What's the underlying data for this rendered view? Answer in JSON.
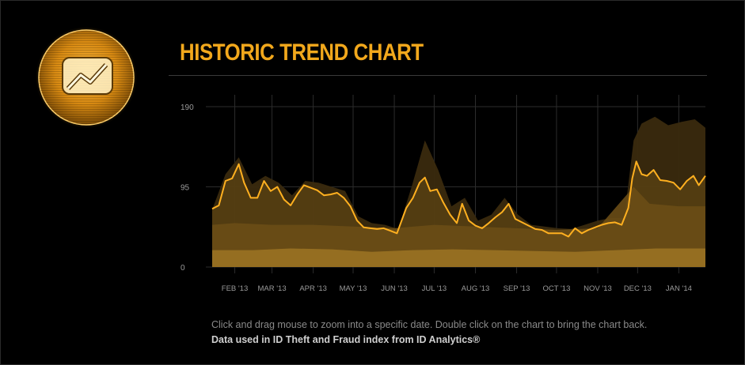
{
  "header": {
    "title": "HISTORIC TREND CHART",
    "icon": "trend-chart-icon"
  },
  "colors": {
    "accent": "#f2a81c",
    "line": "#ffb020",
    "band_dark": "#3a2a0e",
    "band_mid": "#6a4d16",
    "band_light": "#9a7222",
    "background": "#000000"
  },
  "footer": {
    "note": "Click and drag mouse to zoom into a specific date. Double click on the chart to bring the chart back.",
    "credit": "Data used in ID Theft and Fraud index from ID Analytics®"
  },
  "chart_data": {
    "type": "area",
    "x_start": "2013-01-15",
    "x_end": "2014-01-21",
    "ylim": [
      0,
      190
    ],
    "y_ticks": [
      {
        "v": 0,
        "label": "0"
      },
      {
        "v": 95,
        "label": "95"
      },
      {
        "v": 190,
        "label": "190"
      }
    ],
    "x_ticks": [
      {
        "date": "2013-02-01",
        "label": "FEB '13"
      },
      {
        "date": "2013-03-01",
        "label": "MAR '13"
      },
      {
        "date": "2013-04-01",
        "label": "APR '13"
      },
      {
        "date": "2013-05-01",
        "label": "MAY '13"
      },
      {
        "date": "2013-06-01",
        "label": "JUN '13"
      },
      {
        "date": "2013-07-01",
        "label": "JUL '13"
      },
      {
        "date": "2013-08-01",
        "label": "AUG '13"
      },
      {
        "date": "2013-09-01",
        "label": "SEP '13"
      },
      {
        "date": "2013-10-01",
        "label": "OCT '13"
      },
      {
        "date": "2013-11-01",
        "label": "NOV '13"
      },
      {
        "date": "2013-12-01",
        "label": "DEC '13"
      },
      {
        "date": "2014-01-01",
        "label": "JAN '14"
      }
    ],
    "grid": true,
    "series": [
      {
        "role": "index line",
        "points": [
          [
            "2013-01-15",
            69
          ],
          [
            "2013-01-20",
            73
          ],
          [
            "2013-01-25",
            102
          ],
          [
            "2013-01-30",
            105
          ],
          [
            "2013-02-04",
            122
          ],
          [
            "2013-02-08",
            100
          ],
          [
            "2013-02-13",
            82
          ],
          [
            "2013-02-18",
            82
          ],
          [
            "2013-02-23",
            102
          ],
          [
            "2013-02-28",
            90
          ],
          [
            "2013-03-05",
            95
          ],
          [
            "2013-03-10",
            80
          ],
          [
            "2013-03-15",
            73
          ],
          [
            "2013-03-20",
            86
          ],
          [
            "2013-03-25",
            97
          ],
          [
            "2013-03-30",
            94
          ],
          [
            "2013-04-04",
            91
          ],
          [
            "2013-04-09",
            85
          ],
          [
            "2013-04-14",
            86
          ],
          [
            "2013-04-19",
            88
          ],
          [
            "2013-04-24",
            82
          ],
          [
            "2013-04-29",
            72
          ],
          [
            "2013-05-04",
            55
          ],
          [
            "2013-05-09",
            47
          ],
          [
            "2013-05-14",
            46
          ],
          [
            "2013-05-19",
            45
          ],
          [
            "2013-05-24",
            46
          ],
          [
            "2013-05-29",
            43
          ],
          [
            "2013-06-03",
            40
          ],
          [
            "2013-06-06",
            53
          ],
          [
            "2013-06-10",
            70
          ],
          [
            "2013-06-15",
            82
          ],
          [
            "2013-06-20",
            100
          ],
          [
            "2013-06-24",
            106
          ],
          [
            "2013-06-28",
            90
          ],
          [
            "2013-07-03",
            92
          ],
          [
            "2013-07-08",
            76
          ],
          [
            "2013-07-13",
            62
          ],
          [
            "2013-07-18",
            52
          ],
          [
            "2013-07-22",
            75
          ],
          [
            "2013-07-27",
            55
          ],
          [
            "2013-08-01",
            49
          ],
          [
            "2013-08-06",
            46
          ],
          [
            "2013-08-11",
            52
          ],
          [
            "2013-08-16",
            59
          ],
          [
            "2013-08-21",
            65
          ],
          [
            "2013-08-26",
            75
          ],
          [
            "2013-08-31",
            57
          ],
          [
            "2013-09-05",
            53
          ],
          [
            "2013-09-10",
            49
          ],
          [
            "2013-09-15",
            45
          ],
          [
            "2013-09-20",
            44
          ],
          [
            "2013-09-25",
            40
          ],
          [
            "2013-09-30",
            40
          ],
          [
            "2013-10-05",
            40
          ],
          [
            "2013-10-10",
            36
          ],
          [
            "2013-10-15",
            46
          ],
          [
            "2013-10-20",
            40
          ],
          [
            "2013-10-25",
            44
          ],
          [
            "2013-10-30",
            47
          ],
          [
            "2013-11-04",
            50
          ],
          [
            "2013-11-09",
            52
          ],
          [
            "2013-11-14",
            53
          ],
          [
            "2013-11-19",
            50
          ],
          [
            "2013-11-24",
            70
          ],
          [
            "2013-11-27",
            105
          ],
          [
            "2013-11-30",
            125
          ],
          [
            "2013-12-04",
            110
          ],
          [
            "2013-12-08",
            108
          ],
          [
            "2013-12-13",
            115
          ],
          [
            "2013-12-18",
            103
          ],
          [
            "2013-12-23",
            102
          ],
          [
            "2013-12-28",
            100
          ],
          [
            "2014-01-02",
            92
          ],
          [
            "2014-01-07",
            102
          ],
          [
            "2014-01-12",
            108
          ],
          [
            "2014-01-16",
            97
          ],
          [
            "2014-01-21",
            108
          ]
        ]
      },
      {
        "role": "upper band",
        "points": [
          [
            "2013-01-15",
            68
          ],
          [
            "2013-01-25",
            110
          ],
          [
            "2013-02-04",
            130
          ],
          [
            "2013-02-14",
            98
          ],
          [
            "2013-02-24",
            108
          ],
          [
            "2013-03-06",
            100
          ],
          [
            "2013-03-16",
            85
          ],
          [
            "2013-03-26",
            102
          ],
          [
            "2013-04-05",
            100
          ],
          [
            "2013-04-15",
            95
          ],
          [
            "2013-04-25",
            90
          ],
          [
            "2013-05-05",
            60
          ],
          [
            "2013-05-15",
            52
          ],
          [
            "2013-05-25",
            50
          ],
          [
            "2013-06-04",
            45
          ],
          [
            "2013-06-14",
            95
          ],
          [
            "2013-06-24",
            150
          ],
          [
            "2013-07-04",
            115
          ],
          [
            "2013-07-14",
            72
          ],
          [
            "2013-07-24",
            82
          ],
          [
            "2013-08-03",
            55
          ],
          [
            "2013-08-13",
            62
          ],
          [
            "2013-08-23",
            82
          ],
          [
            "2013-09-02",
            62
          ],
          [
            "2013-09-12",
            50
          ],
          [
            "2013-09-22",
            48
          ],
          [
            "2013-10-02",
            46
          ],
          [
            "2013-10-12",
            45
          ],
          [
            "2013-10-22",
            50
          ],
          [
            "2013-11-01",
            55
          ],
          [
            "2013-11-11",
            58
          ],
          [
            "2013-11-21",
            58
          ],
          [
            "2013-11-28",
            150
          ],
          [
            "2013-12-04",
            170
          ],
          [
            "2013-12-14",
            178
          ],
          [
            "2013-12-24",
            168
          ],
          [
            "2014-01-03",
            172
          ],
          [
            "2014-01-13",
            175
          ],
          [
            "2014-01-21",
            165
          ]
        ]
      },
      {
        "role": "middle band",
        "points": [
          [
            "2013-01-15",
            50
          ],
          [
            "2013-02-01",
            52
          ],
          [
            "2013-03-01",
            50
          ],
          [
            "2013-04-01",
            50
          ],
          [
            "2013-05-01",
            48
          ],
          [
            "2013-06-01",
            46
          ],
          [
            "2013-07-01",
            50
          ],
          [
            "2013-08-01",
            48
          ],
          [
            "2013-09-01",
            46
          ],
          [
            "2013-10-01",
            44
          ],
          [
            "2013-11-01",
            46
          ],
          [
            "2013-11-28",
            95
          ],
          [
            "2013-12-10",
            75
          ],
          [
            "2014-01-01",
            72
          ],
          [
            "2014-01-21",
            72
          ]
        ]
      },
      {
        "role": "lower band",
        "points": [
          [
            "2013-01-15",
            20
          ],
          [
            "2013-02-15",
            20
          ],
          [
            "2013-03-15",
            22
          ],
          [
            "2013-04-15",
            21
          ],
          [
            "2013-05-15",
            18
          ],
          [
            "2013-06-15",
            20
          ],
          [
            "2013-07-15",
            21
          ],
          [
            "2013-08-15",
            20
          ],
          [
            "2013-09-15",
            19
          ],
          [
            "2013-10-15",
            18
          ],
          [
            "2013-11-15",
            20
          ],
          [
            "2013-12-15",
            22
          ],
          [
            "2014-01-21",
            22
          ]
        ]
      }
    ]
  }
}
